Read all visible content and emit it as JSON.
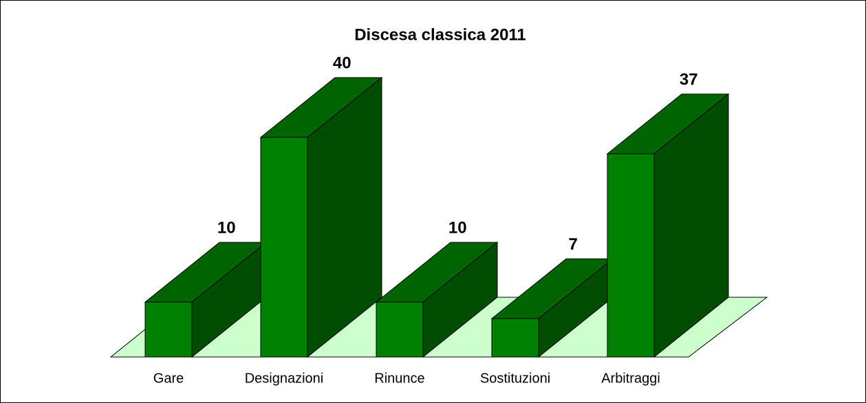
{
  "chart_data": {
    "type": "bar3d",
    "title": "Discesa classica 2011",
    "categories": [
      "Gare",
      "Designazioni",
      "Rinunce",
      "Sostituzioni",
      "Arbitraggi"
    ],
    "values": [
      10,
      40,
      10,
      7,
      37
    ],
    "color": "#008000",
    "side_color": "#004c00",
    "top_color": "#006400",
    "floor_color": "#ccffcc"
  }
}
